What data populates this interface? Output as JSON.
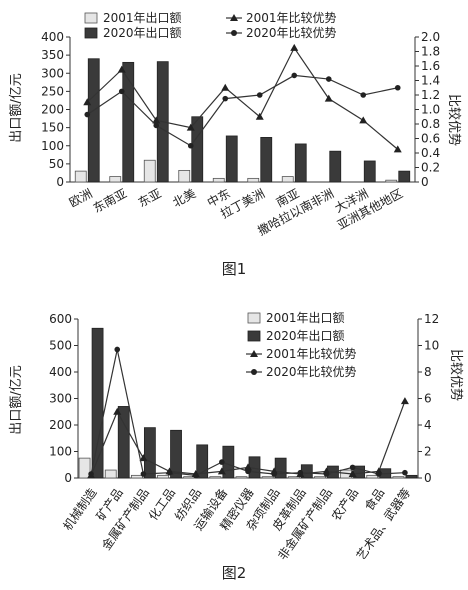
{
  "chart_data": [
    {
      "type": "bar",
      "caption": "图1",
      "categories": [
        "欧洲",
        "东南亚",
        "东亚",
        "北美",
        "中东",
        "拉丁美洲",
        "南亚",
        "撒哈拉以南非洲",
        "大洋洲",
        "亚洲其他地区"
      ],
      "series": [
        {
          "name": "2001年出口额",
          "type": "bar",
          "axis": "left",
          "values": [
            30,
            15,
            60,
            32,
            10,
            10,
            15,
            0,
            0,
            5
          ]
        },
        {
          "name": "2020年出口额",
          "type": "bar",
          "axis": "left",
          "values": [
            340,
            330,
            332,
            180,
            127,
            123,
            105,
            85,
            58,
            30
          ]
        },
        {
          "name": "2001年比较优势",
          "type": "line",
          "axis": "right",
          "values": [
            1.1,
            1.55,
            0.85,
            0.75,
            1.3,
            0.9,
            1.85,
            1.15,
            0.85,
            0.45
          ]
        },
        {
          "name": "2020年比较优势",
          "type": "line",
          "axis": "right",
          "values": [
            0.93,
            1.25,
            0.78,
            0.5,
            1.15,
            1.2,
            1.47,
            1.42,
            1.2,
            1.3
          ]
        }
      ],
      "ylabel": "出口额/亿元",
      "y2label": "比较优势",
      "ylim": [
        0,
        400
      ],
      "y2lim": [
        0,
        2.0
      ],
      "yticks": [
        "0",
        "50",
        "100",
        "150",
        "200",
        "250",
        "300",
        "350",
        "400"
      ],
      "y2ticks": [
        "0",
        "0.2",
        "0.4",
        "0.6",
        "0.8",
        "1.0",
        "1.2",
        "1.4",
        "1.6",
        "1.8",
        "2.0"
      ],
      "legend": "top"
    },
    {
      "type": "bar",
      "caption": "图2",
      "categories": [
        "机械制造",
        "矿产品",
        "金属矿产制品",
        "化工品",
        "纺织品",
        "运输设备",
        "精密仪器",
        "杂项制品",
        "皮革制品",
        "非金属矿产制品",
        "农产品",
        "食品",
        "艺术品、武器等"
      ],
      "series": [
        {
          "name": "2001年出口额",
          "type": "bar",
          "axis": "left",
          "values": [
            75,
            30,
            10,
            10,
            5,
            5,
            5,
            5,
            5,
            5,
            30,
            10,
            5
          ]
        },
        {
          "name": "2020年出口额",
          "type": "bar",
          "axis": "left",
          "values": [
            565,
            270,
            190,
            180,
            125,
            120,
            80,
            75,
            50,
            45,
            45,
            35,
            10
          ]
        },
        {
          "name": "2001年比较优势",
          "type": "line",
          "axis": "right",
          "values": [
            0.2,
            5.0,
            1.5,
            0.5,
            0.3,
            0.5,
            0.8,
            0.5,
            0.3,
            0.5,
            0.3,
            0.5,
            5.8
          ]
        },
        {
          "name": "2020年比较优势",
          "type": "line",
          "axis": "right",
          "values": [
            0.3,
            9.7,
            0.3,
            0.4,
            0.2,
            1.2,
            0.5,
            0.3,
            0.4,
            0.3,
            0.8,
            0.3,
            0.4
          ]
        }
      ],
      "ylabel": "出口额/亿元",
      "y2label": "比较优势",
      "ylim": [
        0,
        600
      ],
      "y2lim": [
        0,
        12
      ],
      "yticks": [
        "0",
        "100",
        "200",
        "300",
        "400",
        "500",
        "600"
      ],
      "y2ticks": [
        "0",
        "2",
        "4",
        "6",
        "8",
        "10",
        "12"
      ],
      "legend": "top-right"
    }
  ]
}
